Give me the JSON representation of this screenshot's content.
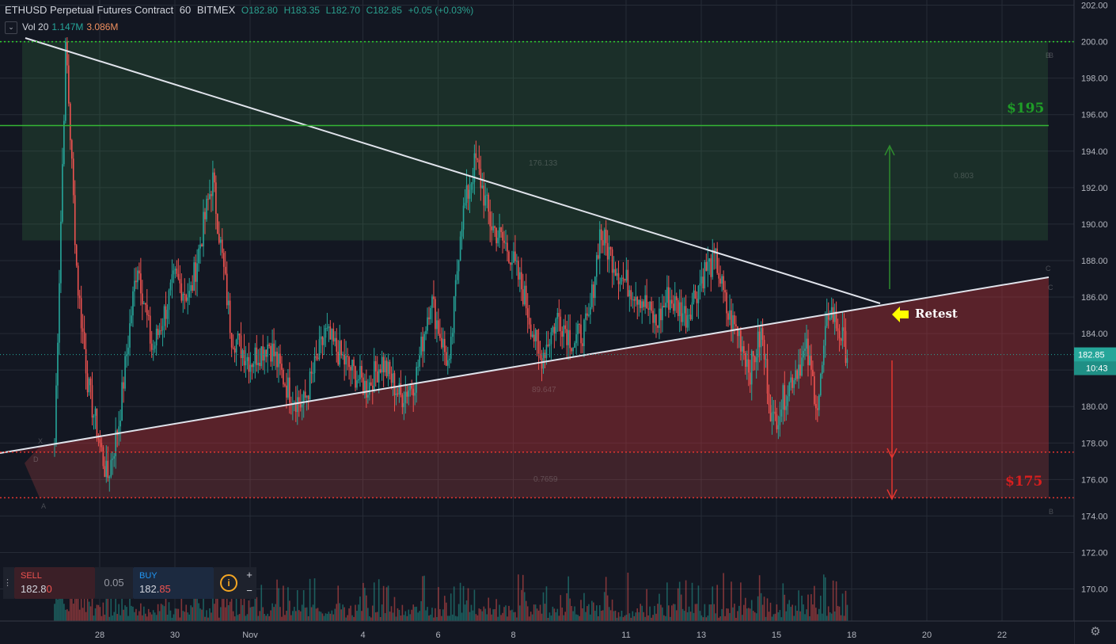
{
  "header": {
    "title": "ETHUSD Perpetual Futures Contract",
    "interval": "60",
    "exchange": "BITMEX",
    "open": "O182.80",
    "high": "H183.35",
    "low": "L182.70",
    "close": "C182.85",
    "change": "+0.05 (+0.03%)"
  },
  "volume_legend": {
    "label": "Vol 20",
    "value": "1.147M",
    "ma": "3.086M"
  },
  "trade_panel": {
    "sell_label": "SELL",
    "sell_price_main": "182.8",
    "sell_price_last": "0",
    "spread": "0.05",
    "buy_label": "BUY",
    "buy_price_main": "182.",
    "buy_price_last": "85"
  },
  "colors": {
    "up": "#26a69a",
    "down": "#ef5350",
    "background": "#131722",
    "target_up": "#1f9e27",
    "target_down": "#d81e1e",
    "callout": "#ffff00"
  },
  "chart_data": {
    "type": "candlestick",
    "symbol": "ETHUSD",
    "interval": "60",
    "x_ticks": [
      "28",
      "30",
      "Nov",
      "4",
      "6",
      "8",
      "11",
      "13",
      "15",
      "18",
      "20",
      "22"
    ],
    "y_ticks": [
      "170.00",
      "172.00",
      "174.00",
      "176.00",
      "178.00",
      "180.00",
      "182.00",
      "184.00",
      "186.00",
      "188.00",
      "190.00",
      "192.00",
      "194.00",
      "196.00",
      "198.00",
      "200.00",
      "202.00"
    ],
    "ylim": [
      168.8,
      202.3
    ],
    "last_price": "182.85",
    "countdown": "10:43",
    "anchors": [
      {
        "day": -1.2,
        "price": 178.0
      },
      {
        "day": -0.9,
        "price": 200.0
      },
      {
        "day": -0.6,
        "price": 187.0
      },
      {
        "day": -0.3,
        "price": 181.0
      },
      {
        "day": 0.2,
        "price": 176.0
      },
      {
        "day": 0.5,
        "price": 179.0
      },
      {
        "day": 1.0,
        "price": 188.0
      },
      {
        "day": 1.4,
        "price": 183.0
      },
      {
        "day": 2.0,
        "price": 187.0
      },
      {
        "day": 2.4,
        "price": 186.0
      },
      {
        "day": 3.0,
        "price": 192.5
      },
      {
        "day": 3.5,
        "price": 184.0
      },
      {
        "day": 4.0,
        "price": 182.5
      },
      {
        "day": 4.5,
        "price": 183.5
      },
      {
        "day": 5.0,
        "price": 181.0
      },
      {
        "day": 5.4,
        "price": 180.0
      },
      {
        "day": 6.0,
        "price": 184.0
      },
      {
        "day": 6.5,
        "price": 182.5
      },
      {
        "day": 7.1,
        "price": 181.0
      },
      {
        "day": 7.5,
        "price": 182.5
      },
      {
        "day": 8.0,
        "price": 180.5
      },
      {
        "day": 8.4,
        "price": 181.5
      },
      {
        "day": 8.8,
        "price": 186.0
      },
      {
        "day": 9.3,
        "price": 182.0
      },
      {
        "day": 9.6,
        "price": 190.0
      },
      {
        "day": 10.0,
        "price": 193.5
      },
      {
        "day": 10.4,
        "price": 190.0
      },
      {
        "day": 10.9,
        "price": 188.5
      },
      {
        "day": 11.3,
        "price": 186.0
      },
      {
        "day": 11.7,
        "price": 182.5
      },
      {
        "day": 12.2,
        "price": 185.0
      },
      {
        "day": 12.6,
        "price": 183.5
      },
      {
        "day": 13.0,
        "price": 184.5
      },
      {
        "day": 13.3,
        "price": 189.5
      },
      {
        "day": 13.9,
        "price": 187.0
      },
      {
        "day": 14.4,
        "price": 186.0
      },
      {
        "day": 14.8,
        "price": 184.5
      },
      {
        "day": 15.1,
        "price": 186.0
      },
      {
        "day": 15.6,
        "price": 185.0
      },
      {
        "day": 16.1,
        "price": 187.5
      },
      {
        "day": 16.4,
        "price": 188.0
      },
      {
        "day": 16.7,
        "price": 185.0
      },
      {
        "day": 17.0,
        "price": 184.0
      },
      {
        "day": 17.3,
        "price": 182.0
      },
      {
        "day": 17.6,
        "price": 184.0
      },
      {
        "day": 17.9,
        "price": 179.0
      },
      {
        "day": 18.2,
        "price": 180.5
      },
      {
        "day": 18.5,
        "price": 182.0
      },
      {
        "day": 18.8,
        "price": 183.0
      },
      {
        "day": 19.1,
        "price": 180.0
      },
      {
        "day": 19.4,
        "price": 185.5
      },
      {
        "day": 19.7,
        "price": 184.0
      },
      {
        "day": 19.9,
        "price": 182.85
      }
    ],
    "annotations": {
      "upper_target_label": "$195",
      "upper_target_price": 195.4,
      "lower_target_label": "$175",
      "lower_target_price": 175.0,
      "callout": "Retest",
      "level_200": 200.0,
      "level_177_5": 177.5,
      "faint_labels": [
        "176.133",
        "0.803",
        "89.647",
        "0.7659"
      ],
      "faint_letters": [
        "B",
        "C",
        "C",
        "A",
        "B",
        "B",
        "X",
        "D"
      ]
    }
  }
}
